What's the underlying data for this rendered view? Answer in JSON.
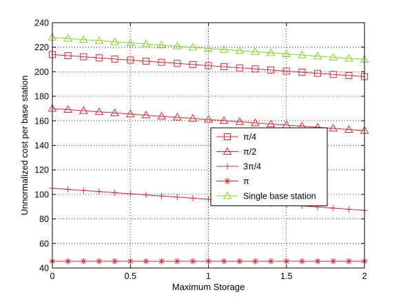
{
  "chart_data": {
    "type": "line",
    "title": "",
    "xlabel": "Maximum Storage",
    "ylabel": "Unnormalized cost per base station",
    "xlim": [
      0,
      2
    ],
    "ylim": [
      40,
      240
    ],
    "x_ticks": [
      "0",
      "0.5",
      "1",
      "1.5",
      "2"
    ],
    "y_ticks": [
      "40",
      "60",
      "80",
      "100",
      "120",
      "140",
      "160",
      "180",
      "200",
      "220",
      "240"
    ],
    "grid": true,
    "legend_position": "center-right",
    "x": [
      0,
      0.1,
      0.2,
      0.3,
      0.4,
      0.5,
      0.6,
      0.7,
      0.8,
      0.9,
      1.0,
      1.1,
      1.2,
      1.3,
      1.4,
      1.5,
      1.6,
      1.7,
      1.8,
      1.9,
      2.0
    ],
    "series": [
      {
        "name": "π/4",
        "color": "#e8202a",
        "marker": "square",
        "values": [
          214,
          213.1,
          212.2,
          211.3,
          210.4,
          209.5,
          208.6,
          207.7,
          206.8,
          205.9,
          205,
          204.1,
          203.2,
          202.3,
          201.4,
          200.5,
          199.6,
          198.7,
          197.8,
          196.9,
          196
        ]
      },
      {
        "name": "π/2",
        "color": "#e8202a",
        "marker": "triangle",
        "values": [
          170,
          169.1,
          168.2,
          167.3,
          166.4,
          165.5,
          164.6,
          163.7,
          162.8,
          161.9,
          161,
          160.1,
          159.2,
          158.3,
          157.4,
          156.5,
          155.6,
          154.7,
          153.8,
          152.9,
          152
        ]
      },
      {
        "name": "3π/4",
        "color": "#e8202a",
        "marker": "plus",
        "values": [
          105,
          104.1,
          103.2,
          102.3,
          101.4,
          100.5,
          99.6,
          98.7,
          97.8,
          96.9,
          96,
          95.1,
          94.2,
          93.3,
          92.4,
          91.5,
          90.6,
          89.7,
          88.8,
          87.9,
          87
        ]
      },
      {
        "name": "π",
        "color": "#e8202a",
        "marker": "asterisk",
        "values": [
          45.5,
          45.5,
          45.5,
          45.5,
          45.5,
          45.5,
          45.5,
          45.5,
          45.5,
          45.5,
          45.5,
          45.5,
          45.5,
          45.5,
          45.5,
          45.5,
          45.5,
          45.5,
          45.5,
          45.5,
          45.5
        ]
      },
      {
        "name": "Single base station",
        "color": "#7ed321",
        "marker": "triangle",
        "values": [
          228,
          227.1,
          226.2,
          225.3,
          224.4,
          223.5,
          222.6,
          221.7,
          220.8,
          219.9,
          219,
          218.1,
          217.2,
          216.3,
          215.4,
          214.5,
          213.6,
          212.7,
          211.8,
          210.9,
          210
        ]
      }
    ]
  }
}
